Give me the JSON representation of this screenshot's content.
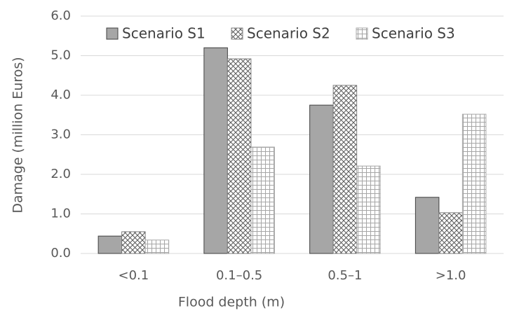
{
  "chart_data": {
    "type": "bar",
    "x_label": "Flood depth (m)",
    "y_label": "Damage (million Euros)",
    "categories": [
      "<0.1",
      "0.1–0.5",
      "0.5–1",
      ">1.0"
    ],
    "series": [
      {
        "name": "Scenario S1",
        "color": "#a6a6a6",
        "pattern": "solid",
        "values": [
          0.44,
          5.2,
          3.75,
          1.42
        ]
      },
      {
        "name": "Scenario S2",
        "color": "#7f7f7f",
        "pattern": "crosshatch",
        "values": [
          0.55,
          4.92,
          4.25,
          1.03
        ]
      },
      {
        "name": "Scenario S3",
        "color": "#a6a6a6",
        "pattern": "grid",
        "values": [
          0.34,
          2.69,
          2.21,
          3.52
        ]
      }
    ],
    "ylim": [
      0,
      6
    ],
    "yticks": [
      {
        "value": 0,
        "label": "0.0"
      },
      {
        "value": 1,
        "label": "1.0"
      },
      {
        "value": 2,
        "label": "2.0"
      },
      {
        "value": 3,
        "label": "3.0"
      },
      {
        "value": 4,
        "label": "4.0"
      },
      {
        "value": 5,
        "label": "5.0"
      },
      {
        "value": 6,
        "label": "6.0"
      }
    ],
    "grid": true,
    "legend": "top"
  }
}
